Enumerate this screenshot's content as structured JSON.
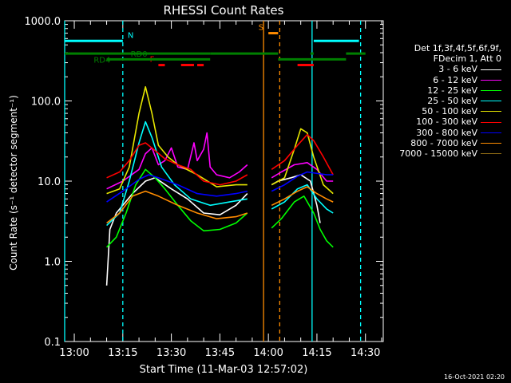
{
  "chart_data": {
    "type": "line",
    "title": "RHESSI Count Rates",
    "xlabel": "Start Time (11-Mar-03 12:57:02)",
    "ylabel": "Count Rate (s⁻¹ detector segment⁻¹)",
    "yscale": "log",
    "ylim": [
      0.1,
      1000.0
    ],
    "xlim": [
      "12:57:02",
      "14:35:30"
    ],
    "xticks": [
      "13:00",
      "13:15",
      "13:30",
      "13:45",
      "14:00",
      "14:15",
      "14:30"
    ],
    "xtick_minutes": [
      180,
      195,
      210,
      225,
      240,
      255,
      270
    ],
    "yticks": [
      "0.1",
      "1.0",
      "10.0",
      "100.0",
      "1000.0"
    ],
    "ytick_values": [
      0.1,
      1,
      10,
      100,
      1000
    ],
    "legend": {
      "header": [
        "Det 1f,3f,4f,5f,6f,9f,",
        "FDecim 1, Att 0"
      ],
      "placement": "right",
      "entries": [
        {
          "label": "3 - 6 keV",
          "color": "#ffffff"
        },
        {
          "label": "6 - 12 keV",
          "color": "#ff00ff"
        },
        {
          "label": "12 - 25 keV",
          "color": "#00ff00"
        },
        {
          "label": "25 - 50 keV",
          "color": "#00ffff"
        },
        {
          "label": "50 - 100 keV",
          "color": "#e6e600"
        },
        {
          "label": "100 - 300 keV",
          "color": "#ff0000"
        },
        {
          "label": "300 - 800 keV",
          "color": "#0000ff"
        },
        {
          "label": "800 - 7000 keV",
          "color": "#ff8c00"
        },
        {
          "label": "7000 - 15000 keV",
          "color": "#8b6914"
        }
      ]
    },
    "series": [
      {
        "name": "3 - 6 keV",
        "color": "#ffffff",
        "segments": [
          [
            [
              190,
              0.5
            ],
            [
              191,
              2.5
            ],
            [
              193,
              4
            ],
            [
              198,
              7
            ],
            [
              202,
              10
            ],
            [
              205,
              11
            ],
            [
              210,
              8
            ],
            [
              215,
              6
            ],
            [
              220,
              4
            ],
            [
              225,
              3.8
            ],
            [
              230,
              5
            ],
            [
              233.5,
              7
            ]
          ],
          [
            [
              241,
              9
            ],
            [
              243,
              10
            ],
            [
              247,
              11
            ],
            [
              250,
              12
            ],
            [
              253,
              10
            ],
            [
              255,
              5
            ],
            [
              256,
              3
            ]
          ]
        ]
      },
      {
        "name": "6 - 12 keV",
        "color": "#ff00ff",
        "segments": [
          [
            [
              190,
              8
            ],
            [
              195,
              10
            ],
            [
              200,
              14
            ],
            [
              202,
              22
            ],
            [
              204,
              26
            ],
            [
              206,
              16
            ],
            [
              208,
              18
            ],
            [
              210,
              26
            ],
            [
              212,
              15
            ],
            [
              215,
              14
            ],
            [
              217,
              30
            ],
            [
              218,
              18
            ],
            [
              220,
              25
            ],
            [
              221,
              40
            ],
            [
              222,
              15
            ],
            [
              224,
              12
            ],
            [
              228,
              11
            ],
            [
              231,
              13
            ],
            [
              233.5,
              16
            ]
          ],
          [
            [
              241,
              11
            ],
            [
              244,
              13
            ],
            [
              248,
              16
            ],
            [
              252,
              17
            ],
            [
              255,
              14
            ],
            [
              258,
              10
            ],
            [
              260,
              10
            ]
          ]
        ]
      },
      {
        "name": "12 - 25 keV",
        "color": "#00ff00",
        "segments": [
          [
            [
              190,
              1.5
            ],
            [
              193,
              2
            ],
            [
              196,
              4
            ],
            [
              199,
              9
            ],
            [
              202,
              14
            ],
            [
              205,
              11
            ],
            [
              208,
              8
            ],
            [
              212,
              5
            ],
            [
              216,
              3.2
            ],
            [
              220,
              2.4
            ],
            [
              225,
              2.5
            ],
            [
              230,
              3
            ],
            [
              233.5,
              4
            ]
          ],
          [
            [
              241,
              2.6
            ],
            [
              244,
              3.4
            ],
            [
              248,
              5.5
            ],
            [
              251,
              6.5
            ],
            [
              254,
              4
            ],
            [
              256,
              2.5
            ],
            [
              258,
              1.8
            ],
            [
              260,
              1.5
            ]
          ]
        ]
      },
      {
        "name": "25 - 50 keV",
        "color": "#00ffff",
        "segments": [
          [
            [
              190,
              2.8
            ],
            [
              194,
              4
            ],
            [
              197,
              10
            ],
            [
              200,
              30
            ],
            [
              202,
              55
            ],
            [
              204,
              35
            ],
            [
              207,
              15
            ],
            [
              211,
              9
            ],
            [
              216,
              6
            ],
            [
              222,
              5
            ],
            [
              228,
              5.5
            ],
            [
              233.5,
              6
            ]
          ],
          [
            [
              241,
              4.5
            ],
            [
              245,
              5.5
            ],
            [
              249,
              8
            ],
            [
              252,
              9
            ],
            [
              255,
              6
            ],
            [
              258,
              4.5
            ],
            [
              260,
              4
            ]
          ]
        ]
      },
      {
        "name": "50 - 100 keV",
        "color": "#e6e600",
        "segments": [
          [
            [
              190,
              7
            ],
            [
              194,
              8
            ],
            [
              197,
              15
            ],
            [
              200,
              70
            ],
            [
              202,
              150
            ],
            [
              204,
              70
            ],
            [
              206,
              28
            ],
            [
              209,
              20
            ],
            [
              212,
              16
            ],
            [
              218,
              12
            ],
            [
              224,
              8.5
            ],
            [
              230,
              9
            ],
            [
              233.5,
              9
            ]
          ],
          [
            [
              241,
              9
            ],
            [
              245,
              11
            ],
            [
              248,
              25
            ],
            [
              250,
              45
            ],
            [
              252,
              40
            ],
            [
              254,
              20
            ],
            [
              257,
              9
            ],
            [
              260,
              7
            ]
          ]
        ]
      },
      {
        "name": "100 - 300 keV",
        "color": "#ff0000",
        "segments": [
          [
            [
              190,
              11
            ],
            [
              194,
              13
            ],
            [
              197,
              18
            ],
            [
              200,
              28
            ],
            [
              202,
              30
            ],
            [
              205,
              24
            ],
            [
              208,
              19
            ],
            [
              212,
              16
            ],
            [
              216,
              14
            ],
            [
              220,
              10
            ],
            [
              225,
              9
            ],
            [
              230,
              10
            ],
            [
              233.5,
              12
            ]
          ],
          [
            [
              241,
              14
            ],
            [
              245,
              18
            ],
            [
              249,
              28
            ],
            [
              252,
              38
            ],
            [
              254,
              32
            ],
            [
              257,
              20
            ],
            [
              260,
              12
            ]
          ]
        ]
      },
      {
        "name": "300 - 800 keV",
        "color": "#0000ff",
        "segments": [
          [
            [
              190,
              5.5
            ],
            [
              195,
              7.5
            ],
            [
              200,
              10.5
            ],
            [
              203,
              12
            ],
            [
              206,
              11
            ],
            [
              212,
              9
            ],
            [
              218,
              7
            ],
            [
              224,
              6.5
            ],
            [
              230,
              7
            ],
            [
              233.5,
              7.5
            ]
          ],
          [
            [
              241,
              7.5
            ],
            [
              245,
              9
            ],
            [
              249,
              11.5
            ],
            [
              252,
              13
            ],
            [
              255,
              12.5
            ],
            [
              258,
              12
            ],
            [
              260,
              12
            ]
          ]
        ]
      },
      {
        "name": "800 - 7000 keV",
        "color": "#ff8c00",
        "segments": [
          [
            [
              190,
              3
            ],
            [
              194,
              4
            ],
            [
              198,
              6.5
            ],
            [
              202,
              7.5
            ],
            [
              206,
              6.5
            ],
            [
              212,
              5
            ],
            [
              218,
              4
            ],
            [
              224,
              3.4
            ],
            [
              230,
              3.6
            ],
            [
              233.5,
              4
            ]
          ],
          [
            [
              241,
              5
            ],
            [
              245,
              6
            ],
            [
              249,
              7.5
            ],
            [
              252,
              8.5
            ],
            [
              255,
              7
            ],
            [
              258,
              6
            ],
            [
              260,
              5.5
            ]
          ]
        ]
      },
      {
        "name": "7000 - 15000 keV",
        "color": "#8b6914",
        "segments": []
      }
    ],
    "attenuator_markers": [
      {
        "label": "N",
        "color": "#00ffff",
        "bars": [
          [
            177.03,
            195
          ]
        ],
        "bars_level": 560
      },
      {
        "label": "N",
        "color": "#00ffff",
        "bars": [
          [
            254,
            268
          ]
        ],
        "bars_level": 560
      },
      {
        "label": "F",
        "color": "#ff0000",
        "bars": [
          [
            206,
            208
          ],
          [
            213,
            217
          ],
          [
            218,
            220
          ],
          [
            249,
            254
          ]
        ],
        "bars_level": 280
      },
      {
        "label": "S",
        "color": "#ff8c00",
        "bars": [
          [
            240,
            243
          ]
        ],
        "bars_level": 700
      },
      {
        "label": "RD0",
        "color": "#008000",
        "bars": [
          [
            177.03,
            222
          ],
          [
            222,
            243
          ],
          [
            253,
            254
          ],
          [
            264,
            270
          ]
        ],
        "bars_level": 390
      },
      {
        "label": "RD4",
        "color": "#008000",
        "bars": [
          [
            190,
            222
          ],
          [
            243,
            264
          ]
        ],
        "bars_level": 330
      }
    ],
    "vertical_lines": [
      {
        "color": "#00ffff",
        "style": "solid",
        "x": 177.03
      },
      {
        "color": "#00ffff",
        "style": "dashed",
        "x": 195
      },
      {
        "color": "#ff8c00",
        "style": "solid",
        "x": 238.5
      },
      {
        "color": "#ff8c00",
        "style": "dashed",
        "x": 243.5
      },
      {
        "color": "#00ffff",
        "style": "solid",
        "x": 253.5
      },
      {
        "color": "#00ffff",
        "style": "dashed",
        "x": 268.5
      }
    ],
    "grid": false
  },
  "footer": {
    "timestamp": "16-Oct-2021 02:20"
  }
}
